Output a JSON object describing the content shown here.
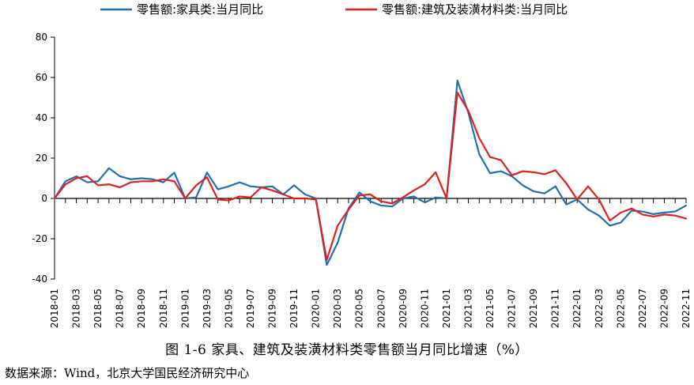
{
  "chart_data": {
    "type": "line",
    "title": "",
    "xlabel": "",
    "ylabel": "",
    "ylim": [
      -40,
      80
    ],
    "yticks": [
      -40,
      -20,
      0,
      20,
      40,
      60,
      80
    ],
    "grid": false,
    "legend_position": "top",
    "x": [
      "2018-01",
      "2018-02",
      "2018-03",
      "2018-04",
      "2018-05",
      "2018-06",
      "2018-07",
      "2018-08",
      "2018-09",
      "2018-10",
      "2018-11",
      "2018-12",
      "2019-01",
      "2019-02",
      "2019-03",
      "2019-04",
      "2019-05",
      "2019-06",
      "2019-07",
      "2019-08",
      "2019-09",
      "2019-10",
      "2019-11",
      "2019-12",
      "2020-01",
      "2020-02",
      "2020-03",
      "2020-04",
      "2020-05",
      "2020-06",
      "2020-07",
      "2020-08",
      "2020-09",
      "2020-10",
      "2020-11",
      "2020-12",
      "2021-01",
      "2021-02",
      "2021-03",
      "2021-04",
      "2021-05",
      "2021-06",
      "2021-07",
      "2021-08",
      "2021-09",
      "2021-10",
      "2021-11",
      "2021-12",
      "2022-01",
      "2022-02",
      "2022-03",
      "2022-04",
      "2022-05",
      "2022-06",
      "2022-07",
      "2022-08",
      "2022-09",
      "2022-10",
      "2022-11"
    ],
    "tick_labels": [
      "2018-01",
      "2018-03",
      "2018-05",
      "2018-07",
      "2018-09",
      "2018-11",
      "2019-01",
      "2019-03",
      "2019-05",
      "2019-07",
      "2019-09",
      "2019-11",
      "2020-01",
      "2020-03",
      "2020-05",
      "2020-07",
      "2020-09",
      "2020-11",
      "2021-01",
      "2021-03",
      "2021-05",
      "2021-07",
      "2021-09",
      "2021-11",
      "2022-01",
      "2022-03",
      "2022-05",
      "2022-07",
      "2022-09",
      "2022-11"
    ],
    "series": [
      {
        "name": "零售额:家具类:当月同比",
        "color": "#1f6fb4",
        "values": [
          0,
          8.5,
          11,
          8,
          8.5,
          15,
          11,
          9.5,
          10,
          9.5,
          8,
          12.8,
          0,
          0.5,
          12.8,
          4.5,
          6,
          8,
          6,
          5.5,
          6,
          2,
          6.5,
          2,
          0,
          -33,
          -22,
          -5,
          3,
          -1.5,
          -3.5,
          -4,
          0,
          1,
          -2,
          0.5,
          0,
          58.5,
          42.5,
          22,
          12.5,
          13.5,
          11,
          6.5,
          3.5,
          2.5,
          6,
          -3,
          -0.5,
          -5.5,
          -8.5,
          -13.5,
          -12,
          -6,
          -6.5,
          -7.8,
          -7,
          -6.5,
          -3.5
        ]
      },
      {
        "name": "零售额:建筑及装潢材料类:当月同比",
        "color": "#e0201b",
        "values": [
          0,
          7,
          10,
          11,
          6.5,
          7,
          5.5,
          8,
          8.5,
          8.5,
          9.5,
          8.5,
          0,
          6.5,
          10.5,
          -0.5,
          -1,
          1,
          0.5,
          5.5,
          4,
          2,
          0,
          0,
          -0.5,
          -30.5,
          -13.5,
          -5.5,
          1.5,
          2,
          -1.5,
          -2.5,
          0.5,
          4,
          7,
          13,
          0,
          52.5,
          43.5,
          30,
          20.5,
          19,
          11.5,
          13.5,
          13,
          12,
          14,
          7.5,
          -0.5,
          6,
          -0.5,
          -11,
          -7,
          -5,
          -8,
          -9,
          -8,
          -8.5,
          -10
        ]
      }
    ]
  },
  "caption": "图 1-6 家具、建筑及装潢材料类零售额当月同比增速（%）",
  "source_note": "数据来源：Wind，北京大学国民经济研究中心"
}
